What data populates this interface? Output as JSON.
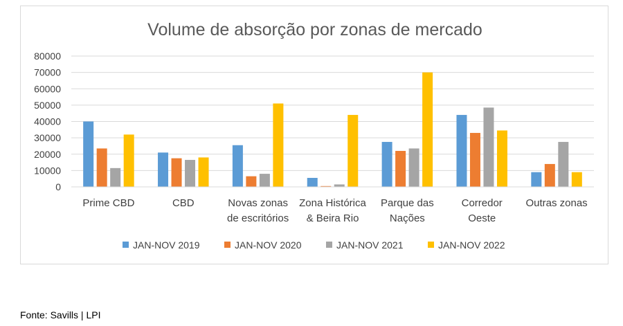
{
  "chart_data": {
    "type": "bar",
    "title": "Volume de absorção por zonas de mercado",
    "categories": [
      [
        "Prime CBD"
      ],
      [
        "CBD"
      ],
      [
        "Novas zonas",
        "de escritórios"
      ],
      [
        "Zona Histórica",
        "& Beira Rio"
      ],
      [
        "Parque das",
        "Nações"
      ],
      [
        "Corredor",
        "Oeste"
      ],
      [
        "Outras zonas"
      ]
    ],
    "series": [
      {
        "name": "JAN-NOV 2019",
        "color": "#5b9bd5",
        "values": [
          40000,
          21000,
          25500,
          5500,
          27500,
          44000,
          9000
        ]
      },
      {
        "name": "JAN-NOV 2020",
        "color": "#ed7d31",
        "values": [
          23500,
          17500,
          6500,
          500,
          22000,
          33000,
          14000
        ]
      },
      {
        "name": "JAN-NOV 2021",
        "color": "#a5a5a5",
        "values": [
          11500,
          16500,
          8000,
          1500,
          23500,
          48500,
          27500
        ]
      },
      {
        "name": "JAN-NOV 2022",
        "color": "#ffc000",
        "values": [
          32000,
          18000,
          51000,
          44000,
          70000,
          34500,
          9000
        ]
      }
    ],
    "ylim": [
      0,
      80000
    ],
    "yticks": [
      "0",
      "10000",
      "20000",
      "30000",
      "40000",
      "50000",
      "60000",
      "70000",
      "80000"
    ],
    "xlabel": "",
    "ylabel": "",
    "legend_position": "bottom",
    "grid": true
  },
  "source": "Fonte: Savills | LPI"
}
